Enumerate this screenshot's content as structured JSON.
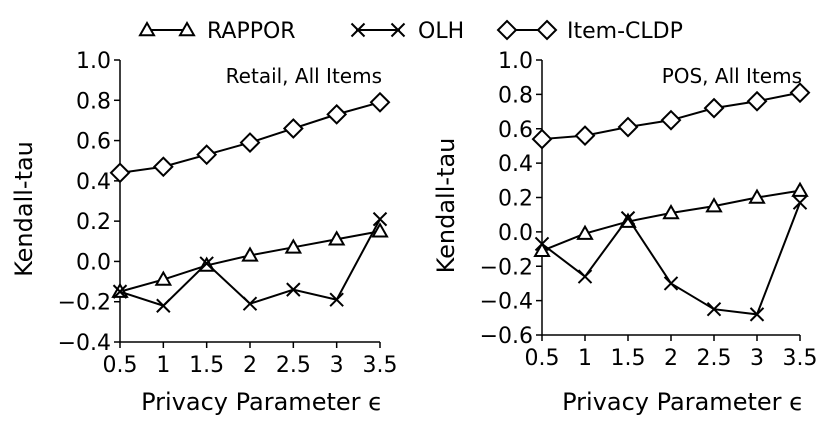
{
  "legend": {
    "entries": [
      {
        "name": "RAPPOR",
        "marker": "triangle"
      },
      {
        "name": "OLH",
        "marker": "x"
      },
      {
        "name": "Item-CLDP",
        "marker": "diamond"
      }
    ],
    "placement": "top-center"
  },
  "chart_data": [
    {
      "type": "line",
      "annotation": "Retail, All Items",
      "xlabel": "Privacy Parameter ϵ",
      "ylabel": "Kendall-tau",
      "x": [
        0.5,
        1,
        1.5,
        2,
        2.5,
        3,
        3.5
      ],
      "xticks": [
        "0.5",
        "1",
        "1.5",
        "2",
        "2.5",
        "3",
        "3.5"
      ],
      "xlim": [
        0.5,
        3.5
      ],
      "ylim": [
        -0.4,
        1.0
      ],
      "yticks": [
        "−0.4",
        "−0.2",
        "0.0",
        "0.2",
        "0.4",
        "0.6",
        "0.8",
        "1.0"
      ],
      "yticks_values": [
        -0.4,
        -0.2,
        0.0,
        0.2,
        0.4,
        0.6,
        0.8,
        1.0
      ],
      "grid": false,
      "series": [
        {
          "name": "RAPPOR",
          "marker": "triangle",
          "values": [
            -0.15,
            -0.09,
            -0.02,
            0.03,
            0.07,
            0.11,
            0.15
          ]
        },
        {
          "name": "OLH",
          "marker": "x",
          "values": [
            -0.15,
            -0.22,
            -0.01,
            -0.21,
            -0.14,
            -0.19,
            0.21
          ]
        },
        {
          "name": "Item-CLDP",
          "marker": "diamond",
          "values": [
            0.44,
            0.47,
            0.53,
            0.59,
            0.66,
            0.73,
            0.79
          ]
        }
      ]
    },
    {
      "type": "line",
      "annotation": "POS, All Items",
      "xlabel": "Privacy Parameter ϵ",
      "ylabel": "Kendall-tau",
      "x": [
        0.5,
        1,
        1.5,
        2,
        2.5,
        3,
        3.5
      ],
      "xticks": [
        "0.5",
        "1",
        "1.5",
        "2",
        "2.5",
        "3",
        "3.5"
      ],
      "xlim": [
        0.5,
        3.5
      ],
      "ylim": [
        -0.6,
        1.0
      ],
      "yticks": [
        "−0.6",
        "−0.4",
        "−0.2",
        "0.0",
        "0.2",
        "0.4",
        "0.6",
        "0.8",
        "1.0"
      ],
      "yticks_values": [
        -0.6,
        -0.4,
        -0.2,
        0.0,
        0.2,
        0.4,
        0.6,
        0.8,
        1.0
      ],
      "grid": false,
      "series": [
        {
          "name": "RAPPOR",
          "marker": "triangle",
          "values": [
            -0.11,
            -0.01,
            0.06,
            0.11,
            0.15,
            0.2,
            0.24
          ]
        },
        {
          "name": "OLH",
          "marker": "x",
          "values": [
            -0.07,
            -0.26,
            0.08,
            -0.3,
            -0.45,
            -0.48,
            0.17
          ]
        },
        {
          "name": "Item-CLDP",
          "marker": "diamond",
          "values": [
            0.54,
            0.56,
            0.61,
            0.65,
            0.72,
            0.76,
            0.81
          ]
        }
      ]
    }
  ]
}
